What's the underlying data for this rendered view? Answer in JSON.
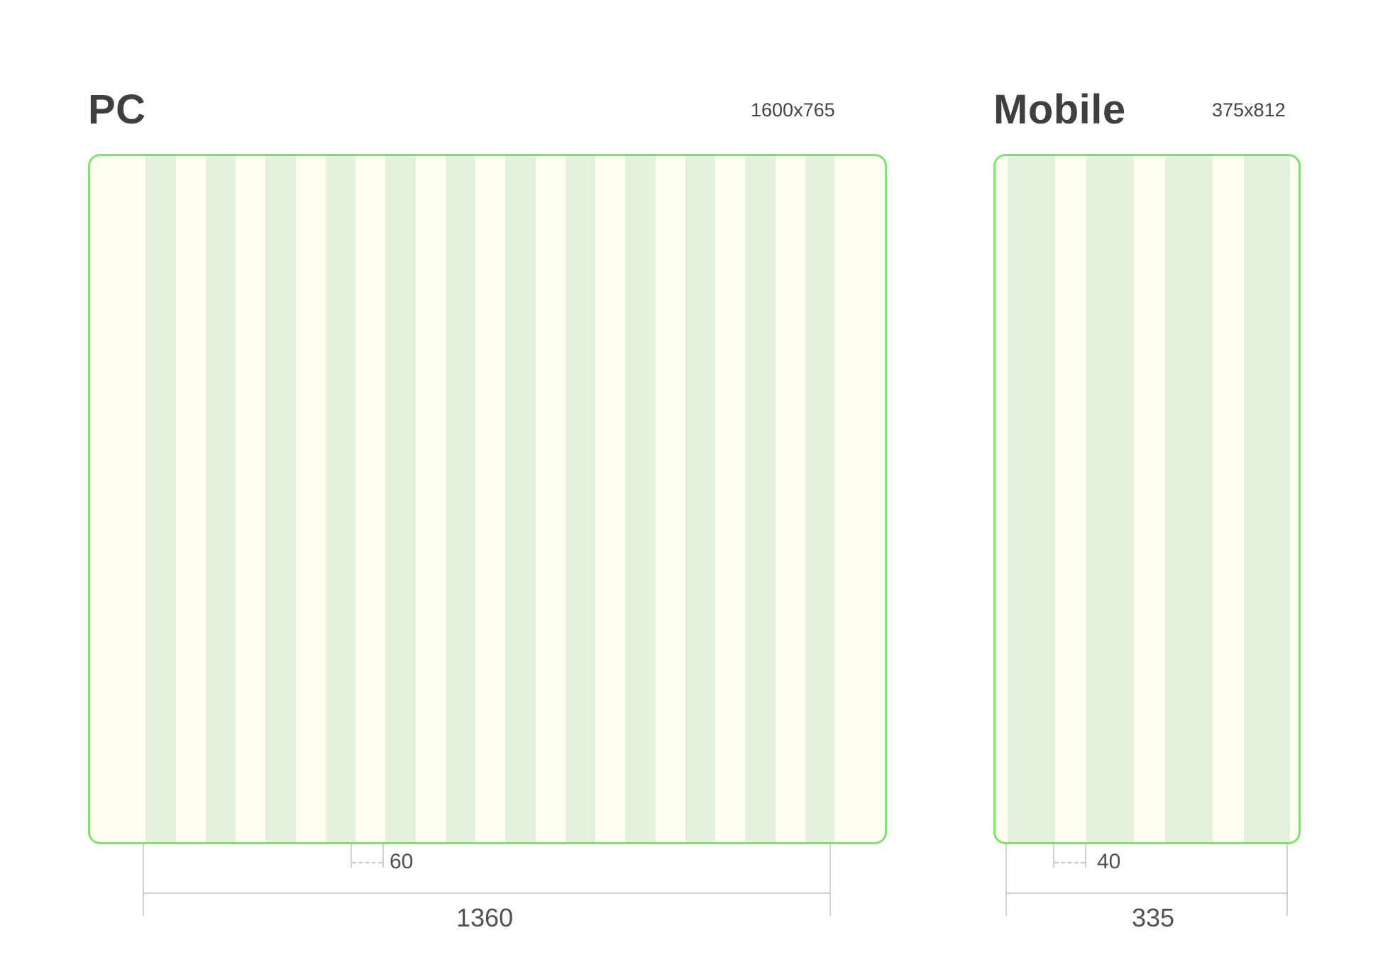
{
  "pc": {
    "title": "PC",
    "size": "1600x765",
    "gutter": "60",
    "content_width": "1360",
    "columns": 12
  },
  "mobile": {
    "title": "Mobile",
    "size": "375x812",
    "gutter": "40",
    "content_width": "335",
    "columns": 4
  },
  "colors": {
    "frame_border": "#7ee36e",
    "frame_bg": "#fefff0",
    "column_fill": "#e4f2dd",
    "dimension_line": "#cfcfcf"
  }
}
